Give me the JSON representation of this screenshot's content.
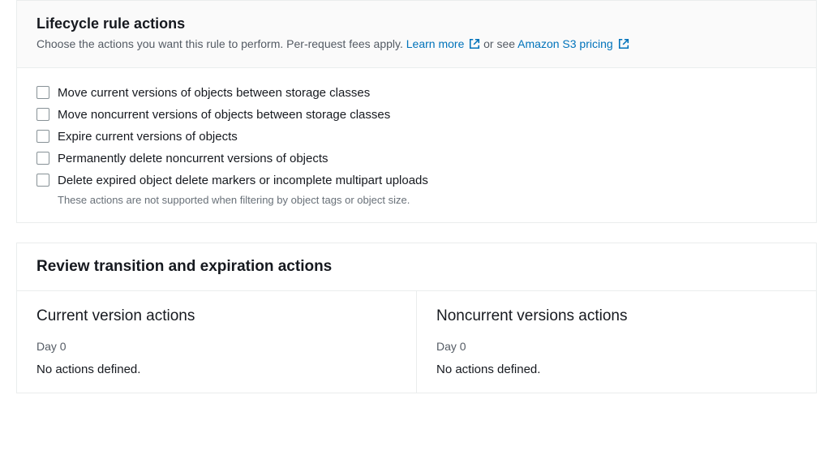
{
  "lifecycle_panel": {
    "title": "Lifecycle rule actions",
    "subtitle_prefix": "Choose the actions you want this rule to perform. Per-request fees apply. ",
    "learn_more_text": "Learn more",
    "subtitle_mid": " or see ",
    "pricing_text": "Amazon S3 pricing",
    "actions": [
      {
        "label": "Move current versions of objects between storage classes",
        "helper": null
      },
      {
        "label": "Move noncurrent versions of objects between storage classes",
        "helper": null
      },
      {
        "label": "Expire current versions of objects",
        "helper": null
      },
      {
        "label": "Permanently delete noncurrent versions of objects",
        "helper": null
      },
      {
        "label": "Delete expired object delete markers or incomplete multipart uploads",
        "helper": "These actions are not supported when filtering by object tags or object size."
      }
    ]
  },
  "review_panel": {
    "title": "Review transition and expiration actions",
    "current": {
      "title": "Current version actions",
      "day": "Day 0",
      "status": "No actions defined."
    },
    "noncurrent": {
      "title": "Noncurrent versions actions",
      "day": "Day 0",
      "status": "No actions defined."
    }
  },
  "colors": {
    "link": "#0073bb",
    "border": "#eaeded",
    "text": "#16191f",
    "muted": "#545b64",
    "helper": "#687078",
    "checkbox_border": "#879196"
  }
}
